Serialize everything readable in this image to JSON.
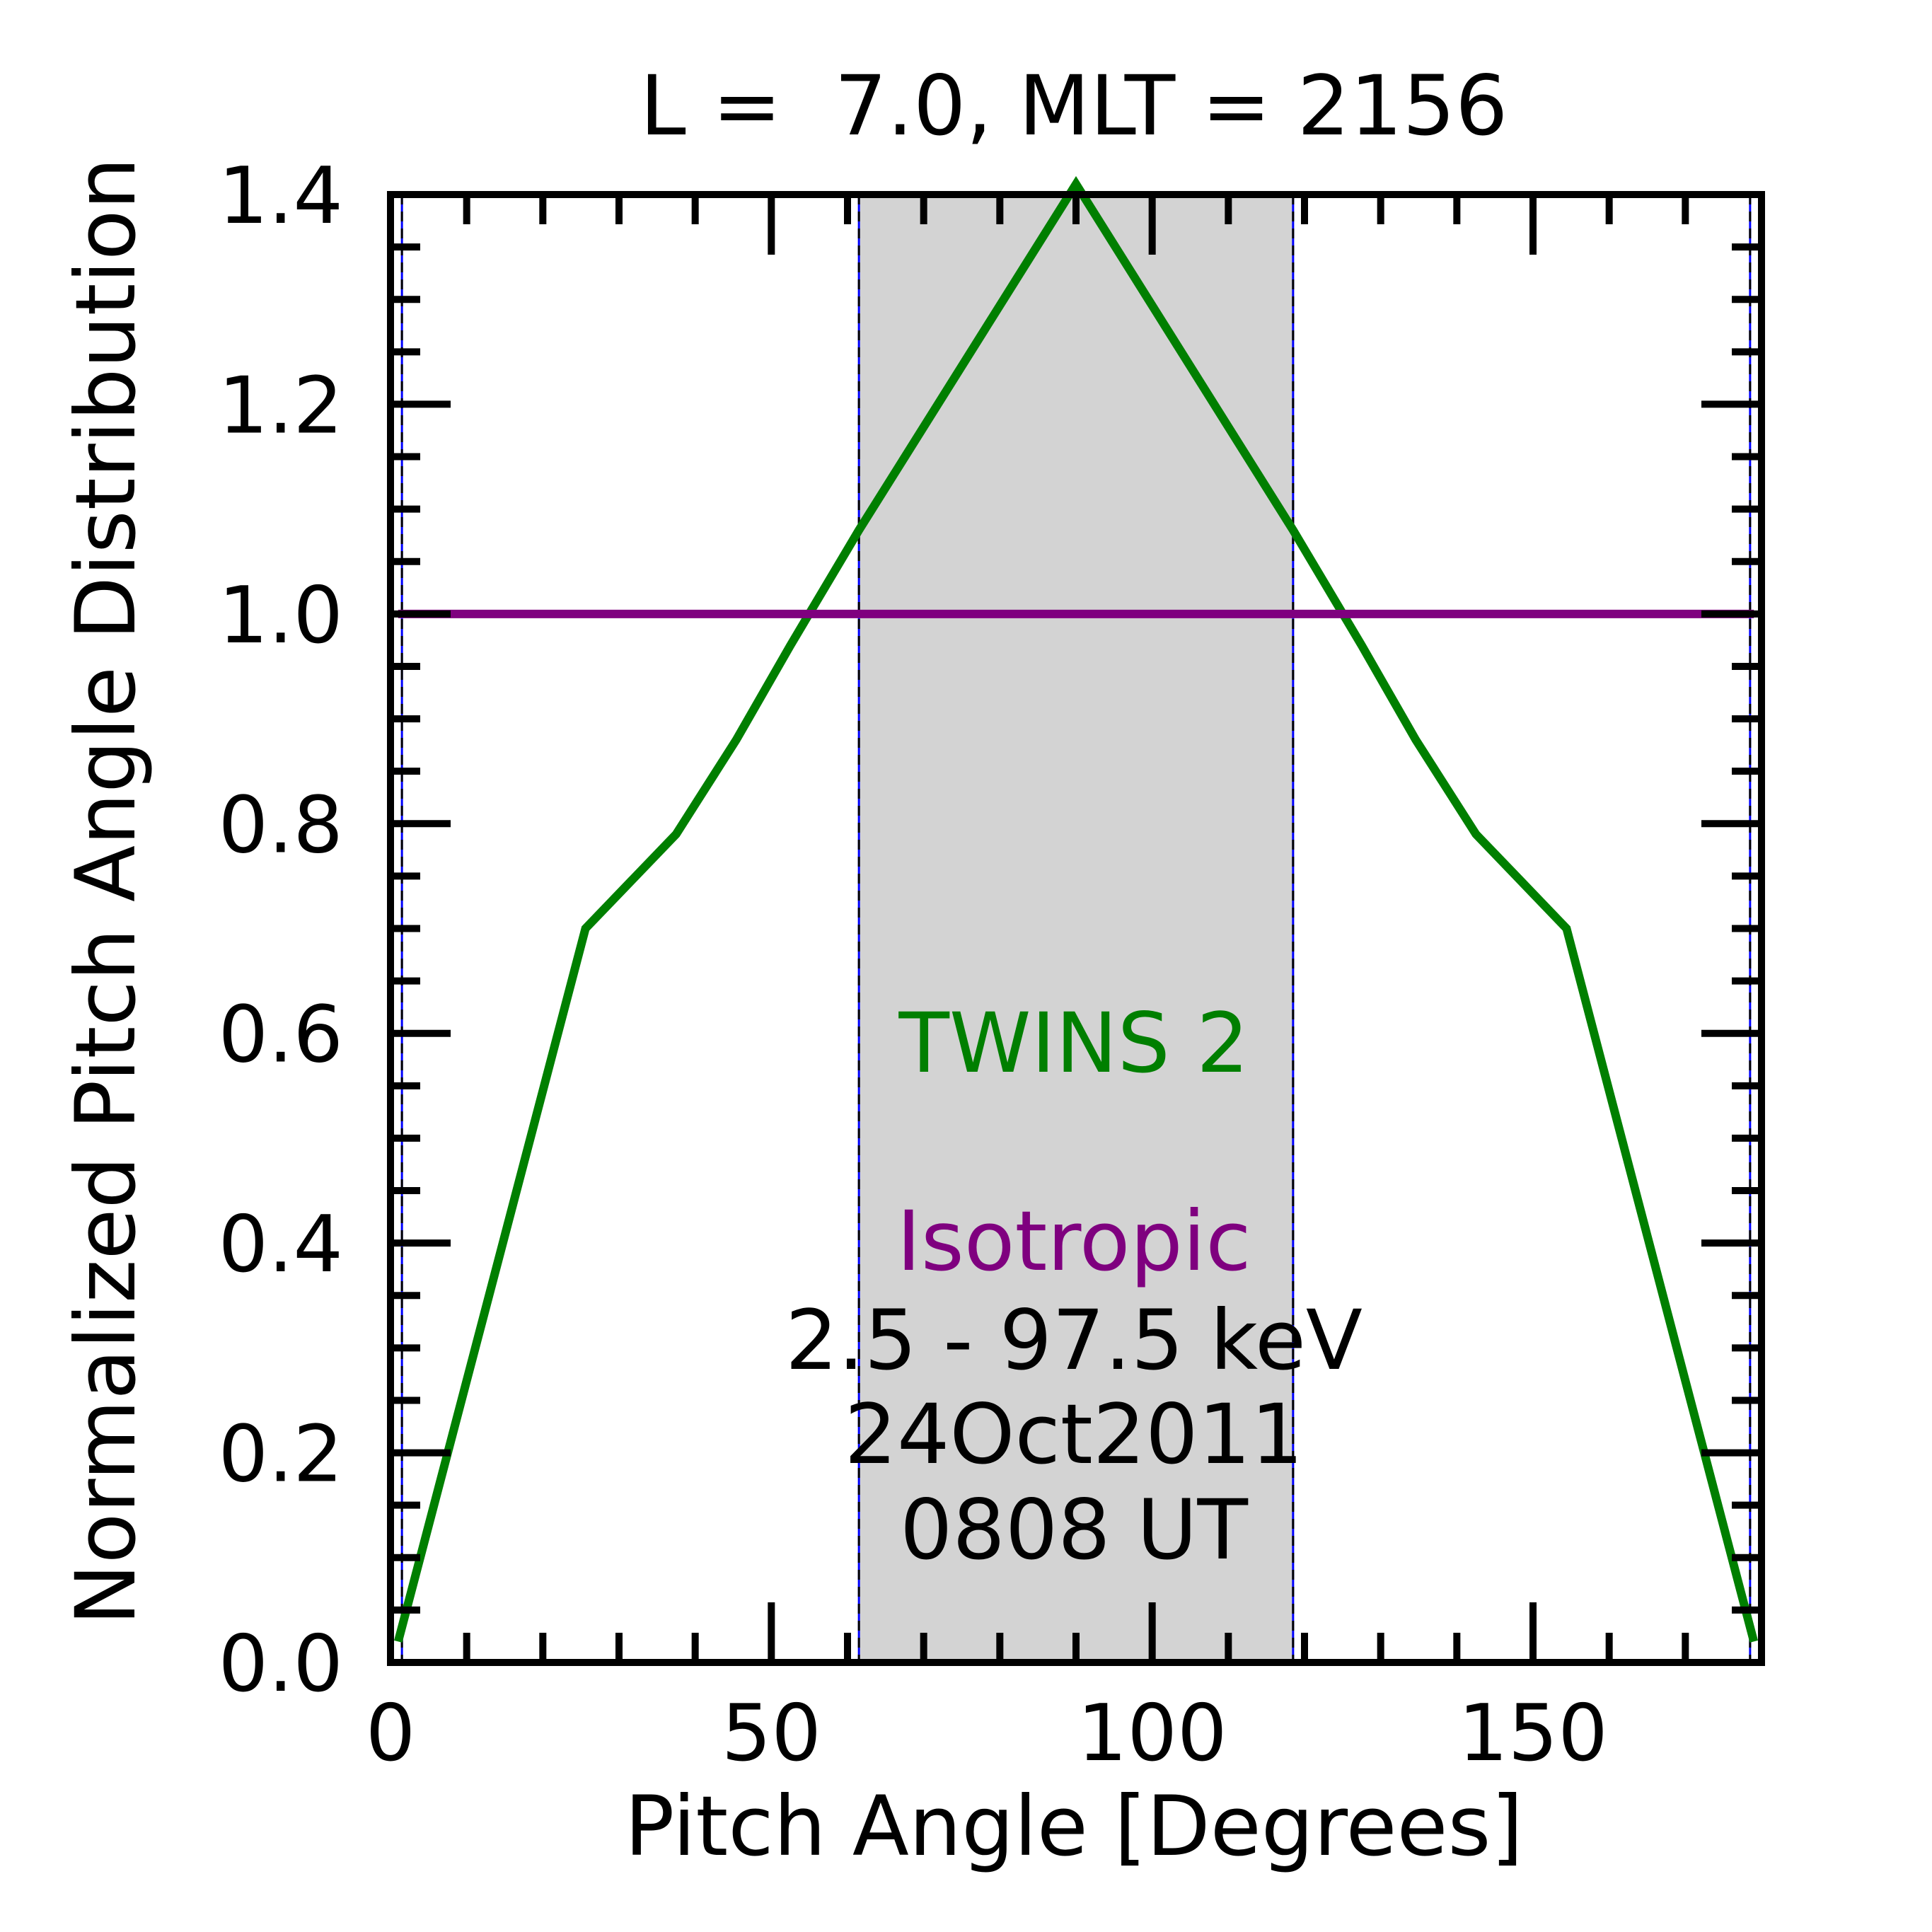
{
  "chart_data": {
    "type": "line",
    "title": "L =  7.0, MLT = 2156",
    "xlabel": "Pitch Angle [Degrees]",
    "ylabel": "Normalized Pitch Angle Distribution",
    "xlim": [
      0,
      180
    ],
    "ylim": [
      0,
      1.4
    ],
    "xticks": [
      0,
      50,
      100,
      150
    ],
    "xtick_labels": [
      "0",
      "50",
      "100",
      "150"
    ],
    "yticks": [
      0.0,
      0.2,
      0.4,
      0.6,
      0.8,
      1.0,
      1.2,
      1.4
    ],
    "ytick_labels": [
      "0.0",
      "0.2",
      "0.4",
      "0.6",
      "0.8",
      "1.0",
      "1.2",
      "1.4"
    ],
    "grid": false,
    "shaded_region": {
      "x": [
        61.5,
        118.5
      ],
      "color": "#d3d3d3"
    },
    "vertical_lines": [
      1.5,
      61.5,
      118.5,
      178.5
    ],
    "series": [
      {
        "name": "TWINS 2",
        "color": "#007f00",
        "x": [
          1,
          25.6,
          37.5,
          45.4,
          52.5,
          61.5,
          90,
          118.5,
          127.5,
          134.6,
          142.5,
          154.4,
          179
        ],
        "y": [
          0.02,
          0.7,
          0.79,
          0.88,
          0.97,
          1.08,
          1.41,
          1.08,
          0.97,
          0.88,
          0.79,
          0.7,
          0.02
        ]
      },
      {
        "name": "Isotropic",
        "color": "#7f007f",
        "x": [
          1,
          179
        ],
        "y": [
          1.0,
          1.0
        ]
      }
    ],
    "annotations": {
      "series1": "TWINS 2",
      "series2": "Isotropic",
      "energy": "2.5 - 97.5 keV",
      "date": "24Oct2011",
      "time": "0808 UT"
    }
  }
}
